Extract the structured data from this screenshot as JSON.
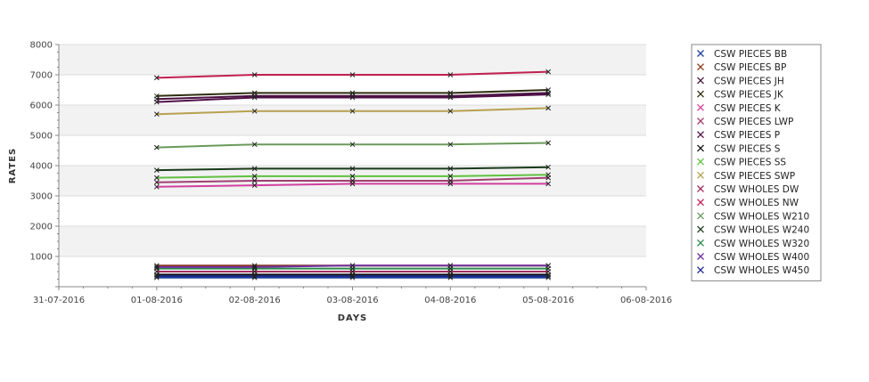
{
  "chart_data": {
    "type": "line",
    "title": "",
    "xlabel": "DAYS",
    "ylabel": "RATES",
    "x_tick_labels": [
      "31-07-2016",
      "01-08-2016",
      "02-08-2016",
      "03-08-2016",
      "04-08-2016",
      "05-08-2016",
      "06-08-2016"
    ],
    "y_tick_labels": [
      "1000",
      "2000",
      "3000",
      "4000",
      "5000",
      "6000",
      "7000",
      "8000"
    ],
    "x": [
      "01-08-2016",
      "02-08-2016",
      "03-08-2016",
      "04-08-2016",
      "05-08-2016"
    ],
    "xlim": [
      "31-07-2016",
      "06-08-2016"
    ],
    "ylim": [
      0,
      8000
    ],
    "grid": true,
    "legend_position": "right",
    "series": [
      {
        "name": "CSW PIECES BB",
        "color": "#1f3fa0",
        "values": [
          300,
          300,
          300,
          300,
          300
        ]
      },
      {
        "name": "CSW PIECES BP",
        "color": "#8a3a1e",
        "values": [
          700,
          700,
          700,
          700,
          700
        ]
      },
      {
        "name": "CSW PIECES JH",
        "color": "#4a1040",
        "values": [
          6200,
          6300,
          6300,
          6300,
          6400
        ]
      },
      {
        "name": "CSW PIECES JK",
        "color": "#2e2e10",
        "values": [
          6300,
          6400,
          6400,
          6400,
          6500
        ]
      },
      {
        "name": "CSW PIECES K",
        "color": "#d040a0",
        "values": [
          3300,
          3350,
          3400,
          3400,
          3400
        ]
      },
      {
        "name": "CSW PIECES LWP",
        "color": "#a04070",
        "values": [
          3450,
          3500,
          3500,
          3500,
          3600
        ]
      },
      {
        "name": "CSW PIECES P",
        "color": "#50104a",
        "values": [
          6100,
          6250,
          6250,
          6250,
          6350
        ]
      },
      {
        "name": "CSW PIECES S",
        "color": "#101010",
        "values": [
          400,
          400,
          400,
          400,
          400
        ]
      },
      {
        "name": "CSW PIECES SS",
        "color": "#60c040",
        "values": [
          3600,
          3650,
          3650,
          3650,
          3700
        ]
      },
      {
        "name": "CSW PIECES SWP",
        "color": "#b8a050",
        "values": [
          5700,
          5800,
          5800,
          5800,
          5900
        ]
      },
      {
        "name": "CSW WHOLES DW",
        "color": "#a03060",
        "values": [
          500,
          500,
          500,
          500,
          500
        ]
      },
      {
        "name": "CSW WHOLES NW",
        "color": "#c02050",
        "values": [
          6900,
          7000,
          7000,
          7000,
          7100
        ]
      },
      {
        "name": "CSW WHOLES W210",
        "color": "#6a9a5a",
        "values": [
          4600,
          4700,
          4700,
          4700,
          4750
        ]
      },
      {
        "name": "CSW WHOLES W240",
        "color": "#1a3a1a",
        "values": [
          3850,
          3900,
          3900,
          3900,
          3950
        ]
      },
      {
        "name": "CSW WHOLES W320",
        "color": "#2a8a4a",
        "values": [
          600,
          600,
          600,
          600,
          600
        ]
      },
      {
        "name": "CSW WHOLES W400",
        "color": "#7030a0",
        "values": [
          650,
          650,
          700,
          700,
          700
        ]
      },
      {
        "name": "CSW WHOLES W450",
        "color": "#1a2a8a",
        "values": [
          350,
          350,
          350,
          350,
          350
        ]
      }
    ]
  }
}
